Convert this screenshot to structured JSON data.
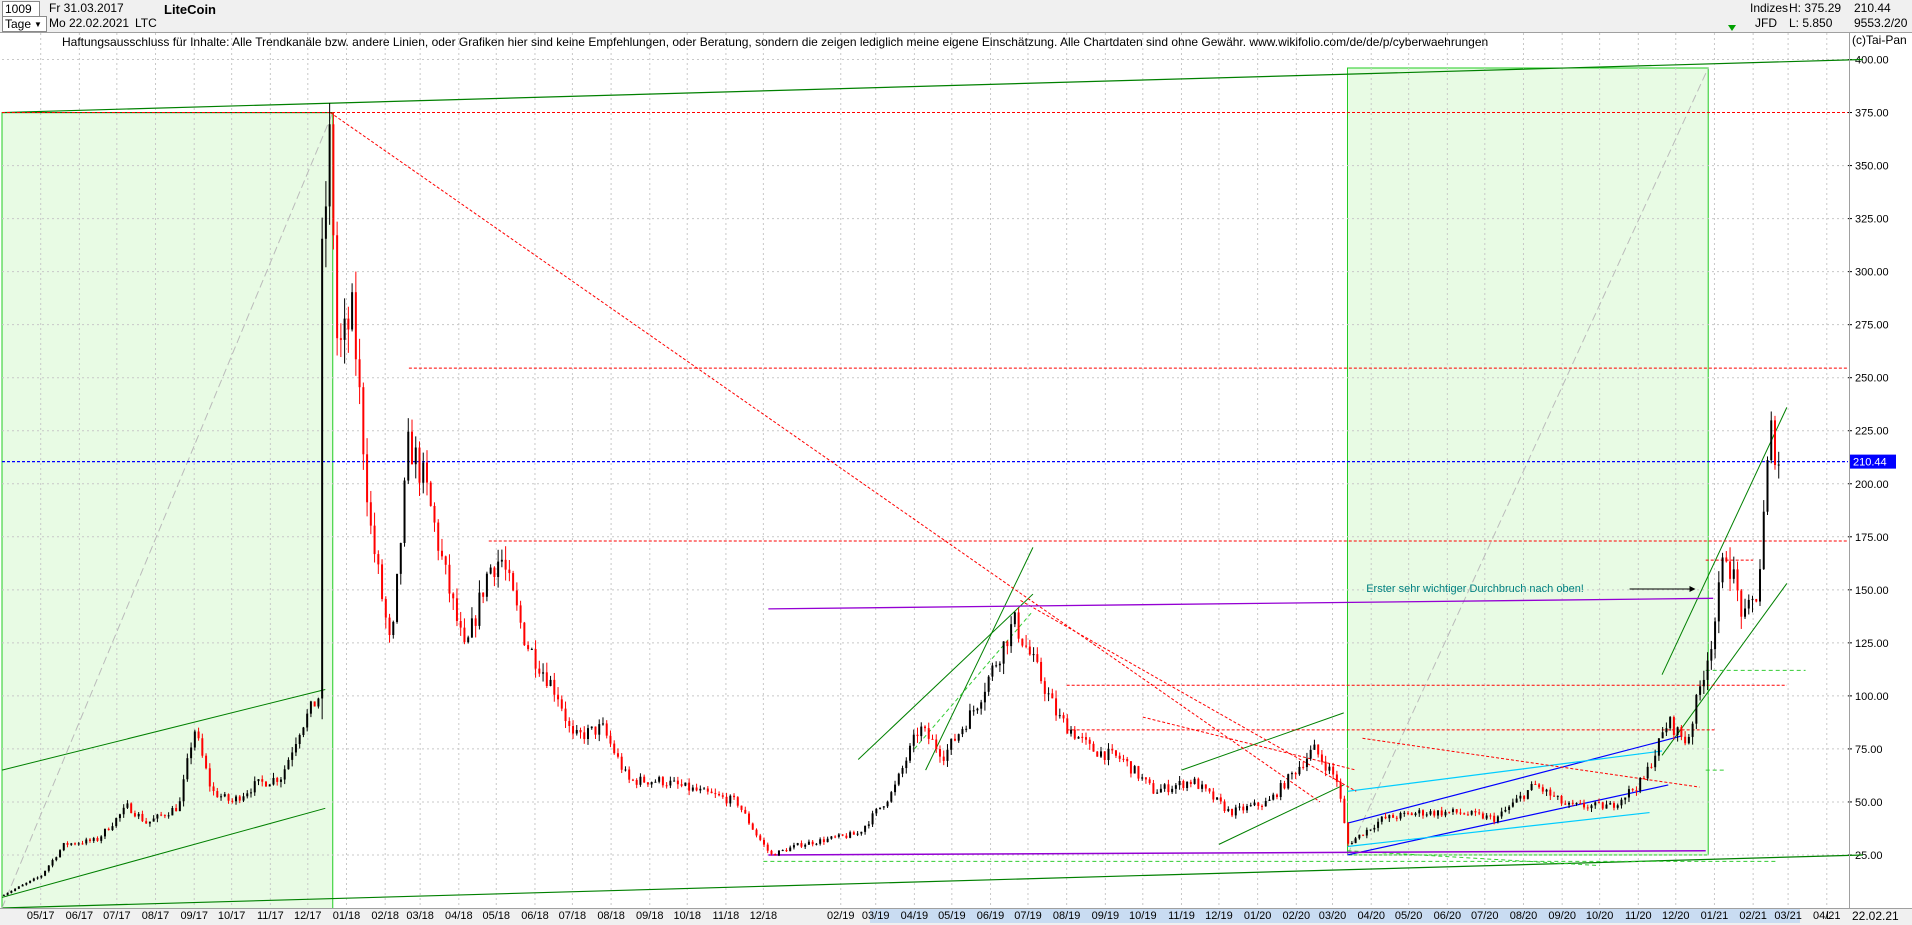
{
  "header": {
    "symbol_select": "1009",
    "start_date": "Fr 31.03.2017",
    "period_select": "Tage",
    "end_date": "Mo 22.02.2021",
    "currency": "LTC",
    "title": "LiteCoin",
    "index_label": "Indizes",
    "source_label": "JFD",
    "high_label": "H: 375.29",
    "low_label": "L: 5.850",
    "last_value": "210.44",
    "last_index": "9553.2/20"
  },
  "disclaimer": "Haftungsausschluss für Inhalte: Alle Trendkanäle bzw. andere Linien, oder Grafiken hier sind keine Empfehlungen, oder Beratung, sondern die zeigen lediglich meine eigene Einschätzung. Alle Chartdaten sind ohne Gewähr.  www.wikifolio.com/de/de/p/cyberwaehrungen",
  "copyright": "(c)Tai-Pan",
  "footer": {
    "scroll_marker": "L",
    "current_date": "22.02.21"
  },
  "colors": {
    "up": "#000000",
    "down": "#ff0000",
    "grid": "#c8c8c8",
    "support": "#008000",
    "zone_fill": "#e8fbe4",
    "resistance": "#ff0000",
    "breakout_line": "#9400d3",
    "current_price_line": "#0000ff",
    "annotation": "#008080"
  },
  "chart_data": {
    "type": "candlestick",
    "title": "LiteCoin",
    "currency": "LTC",
    "x_start": "2017-03-31",
    "x_end": "2021-02-22",
    "x_tick_labels": [
      "05.17",
      "06.17",
      "07.17",
      "08.17",
      "09.17",
      "10.17",
      "11.17",
      "12.17",
      "01.18",
      "02.18",
      "03.18",
      "04.18",
      "05.18",
      "06.18",
      "07.18",
      "08.18",
      "09.18",
      "10.18",
      "11.18",
      "12.18",
      "02.19",
      "03.19",
      "04.19",
      "05.19",
      "06.19",
      "07.19",
      "08.19",
      "09.19",
      "10.19",
      "11.19",
      "12.19",
      "01.20",
      "02.20",
      "03.20",
      "04.20",
      "05.20",
      "06.20",
      "07.20",
      "08.20",
      "09.20",
      "10.20",
      "11.20",
      "12.20",
      "01.21",
      "02.21",
      "03.21",
      "04.21"
    ],
    "ylim": [
      0,
      412.5
    ],
    "y_ticks": [
      25,
      50,
      75,
      100,
      125,
      150,
      175,
      200,
      225,
      250,
      275,
      300,
      325,
      350,
      375,
      400
    ],
    "grid": true,
    "high": 375.29,
    "low": 5.85,
    "last": 210.44,
    "price_path": [
      [
        "2017-03-31",
        6
      ],
      [
        "2017-05-01",
        15
      ],
      [
        "2017-05-20",
        30
      ],
      [
        "2017-06-15",
        32
      ],
      [
        "2017-07-10",
        48
      ],
      [
        "2017-07-25",
        40
      ],
      [
        "2017-08-20",
        48
      ],
      [
        "2017-09-01",
        85
      ],
      [
        "2017-09-15",
        55
      ],
      [
        "2017-10-01",
        50
      ],
      [
        "2017-10-20",
        58
      ],
      [
        "2017-11-10",
        62
      ],
      [
        "2017-11-25",
        85
      ],
      [
        "2017-12-10",
        100
      ],
      [
        "2017-12-12",
        300
      ],
      [
        "2017-12-19",
        365
      ],
      [
        "2017-12-25",
        260
      ],
      [
        "2018-01-06",
        280
      ],
      [
        "2018-01-20",
        180
      ],
      [
        "2018-02-06",
        120
      ],
      [
        "2018-02-20",
        220
      ],
      [
        "2018-03-05",
        200
      ],
      [
        "2018-03-20",
        160
      ],
      [
        "2018-04-06",
        120
      ],
      [
        "2018-04-25",
        160
      ],
      [
        "2018-05-05",
        165
      ],
      [
        "2018-05-25",
        125
      ],
      [
        "2018-06-20",
        100
      ],
      [
        "2018-07-01",
        80
      ],
      [
        "2018-07-25",
        85
      ],
      [
        "2018-08-15",
        60
      ],
      [
        "2018-09-10",
        60
      ],
      [
        "2018-10-10",
        55
      ],
      [
        "2018-11-10",
        50
      ],
      [
        "2018-11-25",
        35
      ],
      [
        "2018-12-07",
        25
      ],
      [
        "2018-12-31",
        30
      ],
      [
        "2019-02-15",
        35
      ],
      [
        "2019-03-15",
        55
      ],
      [
        "2019-04-05",
        85
      ],
      [
        "2019-04-25",
        72
      ],
      [
        "2019-05-20",
        95
      ],
      [
        "2019-06-20",
        135
      ],
      [
        "2019-07-10",
        110
      ],
      [
        "2019-07-25",
        90
      ],
      [
        "2019-08-20",
        75
      ],
      [
        "2019-09-15",
        70
      ],
      [
        "2019-10-10",
        55
      ],
      [
        "2019-11-10",
        60
      ],
      [
        "2019-12-10",
        45
      ],
      [
        "2020-01-10",
        50
      ],
      [
        "2020-02-15",
        75
      ],
      [
        "2020-03-05",
        60
      ],
      [
        "2020-03-13",
        30
      ],
      [
        "2020-04-10",
        42
      ],
      [
        "2020-05-10",
        45
      ],
      [
        "2020-06-10",
        45
      ],
      [
        "2020-07-10",
        42
      ],
      [
        "2020-08-10",
        58
      ],
      [
        "2020-09-05",
        48
      ],
      [
        "2020-10-10",
        48
      ],
      [
        "2020-11-05",
        60
      ],
      [
        "2020-11-25",
        88
      ],
      [
        "2020-12-10",
        78
      ],
      [
        "2020-12-31",
        130
      ],
      [
        "2021-01-10",
        170
      ],
      [
        "2021-01-25",
        135
      ],
      [
        "2021-02-05",
        150
      ],
      [
        "2021-02-15",
        225
      ],
      [
        "2021-02-22",
        210
      ]
    ],
    "horizontal_lines": [
      {
        "value": 375,
        "style": "dashed",
        "color": "#ff0000"
      },
      {
        "value": 254.5,
        "style": "dashed",
        "color": "#ff0000"
      },
      {
        "value": 173,
        "style": "dashed",
        "color": "#ff0000"
      },
      {
        "value": 210.44,
        "style": "dashed",
        "color": "#0000ff",
        "label": "210.44"
      },
      {
        "value": 25,
        "style": "solid",
        "color": "#9400d3"
      }
    ],
    "annotations": [
      {
        "text": "Erster sehr wichtiger Durchbruch nach oben!",
        "date": "2020-03-15",
        "value": 148,
        "color": "#008080"
      }
    ]
  }
}
